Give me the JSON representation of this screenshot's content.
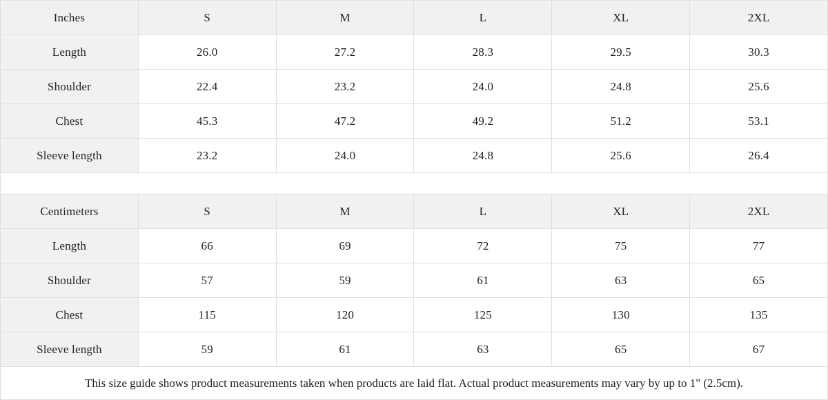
{
  "colors": {
    "header_bg": "#f1f1f1",
    "border": "#dfdfdf",
    "text": "#222222",
    "cell_bg": "#ffffff"
  },
  "inches": {
    "unit_label": "Inches",
    "columns": [
      "S",
      "M",
      "L",
      "XL",
      "2XL"
    ],
    "rows": [
      {
        "label": "Length",
        "values": [
          "26.0",
          "27.2",
          "28.3",
          "29.5",
          "30.3"
        ]
      },
      {
        "label": "Shoulder",
        "values": [
          "22.4",
          "23.2",
          "24.0",
          "24.8",
          "25.6"
        ]
      },
      {
        "label": "Chest",
        "values": [
          "45.3",
          "47.2",
          "49.2",
          "51.2",
          "53.1"
        ]
      },
      {
        "label": "Sleeve length",
        "values": [
          "23.2",
          "24.0",
          "24.8",
          "25.6",
          "26.4"
        ]
      }
    ]
  },
  "centimeters": {
    "unit_label": "Centimeters",
    "columns": [
      "S",
      "M",
      "L",
      "XL",
      "2XL"
    ],
    "rows": [
      {
        "label": "Length",
        "values": [
          "66",
          "69",
          "72",
          "75",
          "77"
        ]
      },
      {
        "label": "Shoulder",
        "values": [
          "57",
          "59",
          "61",
          "63",
          "65"
        ]
      },
      {
        "label": "Chest",
        "values": [
          "115",
          "120",
          "125",
          "130",
          "135"
        ]
      },
      {
        "label": "Sleeve length",
        "values": [
          "59",
          "61",
          "63",
          "65",
          "67"
        ]
      }
    ]
  },
  "footer": {
    "note": "This size guide shows product measurements taken when products are laid flat.  Actual product measurements may vary by up to 1\" (2.5cm)."
  }
}
